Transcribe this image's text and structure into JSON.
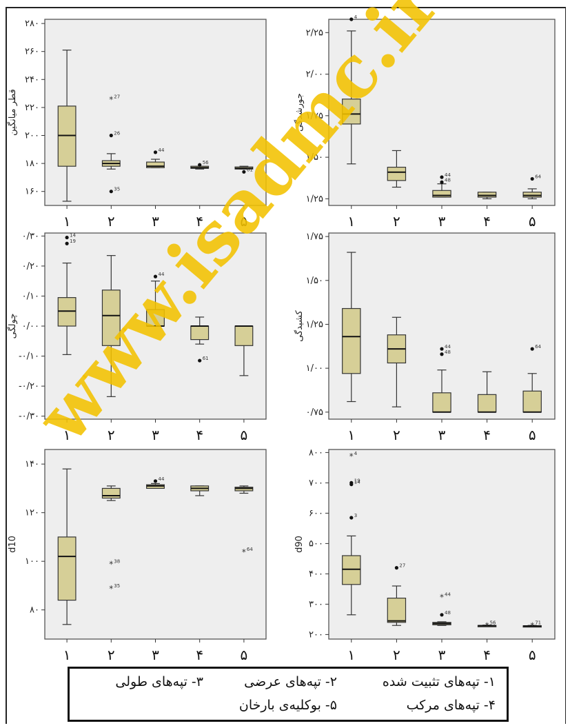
{
  "watermark": "www.isadmc.ir",
  "colors": {
    "box_fill": "#d6cf97",
    "panel_bg": "#eeeeee",
    "watermark": "#f2c200"
  },
  "chart_data": [
    {
      "type": "box",
      "ylabel": "قطر میانگین",
      "ylim": [
        150,
        283
      ],
      "yticks": [
        {
          "v": 160,
          "t": "۱۶۰"
        },
        {
          "v": 180,
          "t": "۱۸۰"
        },
        {
          "v": 200,
          "t": "۲۰۰"
        },
        {
          "v": 220,
          "t": "۲۲۰"
        },
        {
          "v": 240,
          "t": "۲۴۰"
        },
        {
          "v": 260,
          "t": "۲۶۰"
        },
        {
          "v": 280,
          "t": "۲۸۰"
        }
      ],
      "categories": [
        "۱",
        "۲",
        "۳",
        "۴",
        "۵"
      ],
      "boxes": [
        {
          "min": 153,
          "q1": 178,
          "median": 200,
          "q3": 221,
          "max": 261,
          "outliers": []
        },
        {
          "min": 176,
          "q1": 178,
          "median": 180,
          "q3": 182,
          "max": 187,
          "outliers": [
            {
              "v": 200,
              "m": "dot",
              "l": "26"
            },
            {
              "v": 160,
              "m": "dot",
              "l": "35"
            },
            {
              "v": 226,
              "m": "star",
              "l": "27"
            }
          ]
        },
        {
          "min": 177,
          "q1": 177,
          "median": 178,
          "q3": 181,
          "max": 183,
          "outliers": [
            {
              "v": 188,
              "m": "dot",
              "l": "44"
            }
          ]
        },
        {
          "min": 176,
          "q1": 176.5,
          "median": 177,
          "q3": 178,
          "max": 178,
          "outliers": [
            {
              "v": 179,
              "m": "dot",
              "l": "56"
            }
          ]
        },
        {
          "min": 176,
          "q1": 176,
          "median": 176.5,
          "q3": 177.5,
          "max": 178,
          "outliers": [
            {
              "v": 174,
              "m": "dot",
              "l": "61"
            }
          ]
        }
      ]
    },
    {
      "type": "box",
      "ylabel": "جورشدگی",
      "ylim": [
        1.21,
        2.33
      ],
      "yticks": [
        {
          "v": 1.25,
          "t": "۱/۲۵"
        },
        {
          "v": 1.5,
          "t": "۱/۵۰"
        },
        {
          "v": 1.75,
          "t": "۱/۷۵"
        },
        {
          "v": 2.0,
          "t": "۲/۰۰"
        },
        {
          "v": 2.25,
          "t": "۲/۲۵"
        }
      ],
      "categories": [
        "۱",
        "۲",
        "۳",
        "۴",
        "۵"
      ],
      "boxes": [
        {
          "min": 1.46,
          "q1": 1.7,
          "median": 1.76,
          "q3": 1.85,
          "max": 2.26,
          "outliers": [
            {
              "v": 2.33,
              "m": "dot",
              "l": "4"
            }
          ]
        },
        {
          "min": 1.32,
          "q1": 1.36,
          "median": 1.41,
          "q3": 1.44,
          "max": 1.54,
          "outliers": []
        },
        {
          "min": 1.26,
          "q1": 1.26,
          "median": 1.27,
          "q3": 1.3,
          "max": 1.34,
          "outliers": [
            {
              "v": 1.38,
              "m": "dot",
              "l": "44"
            },
            {
              "v": 1.35,
              "m": "dot",
              "l": "48"
            }
          ]
        },
        {
          "min": 1.25,
          "q1": 1.26,
          "median": 1.27,
          "q3": 1.29,
          "max": 1.29,
          "outliers": []
        },
        {
          "min": 1.25,
          "q1": 1.26,
          "median": 1.27,
          "q3": 1.29,
          "max": 1.31,
          "outliers": [
            {
              "v": 1.37,
              "m": "dot",
              "l": "64"
            }
          ]
        }
      ]
    },
    {
      "type": "box",
      "ylabel": "چولگی",
      "ylim": [
        -0.31,
        0.31
      ],
      "yticks": [
        {
          "v": -0.3,
          "t": "-۰/۳۰"
        },
        {
          "v": -0.2,
          "t": "-۰/۲۰"
        },
        {
          "v": -0.1,
          "t": "-۰/۱۰"
        },
        {
          "v": 0.0,
          "t": "۰/۰۰"
        },
        {
          "v": 0.1,
          "t": "۰/۱۰"
        },
        {
          "v": 0.2,
          "t": "۰/۲۰"
        },
        {
          "v": 0.3,
          "t": "۰/۳۰"
        }
      ],
      "categories": [
        "۱",
        "۲",
        "۳",
        "۴",
        "۵"
      ],
      "boxes": [
        {
          "min": -0.095,
          "q1": 0.0,
          "median": 0.05,
          "q3": 0.095,
          "max": 0.21,
          "outliers": [
            {
              "v": 0.295,
              "m": "dot",
              "l": "14"
            },
            {
              "v": 0.275,
              "m": "dot",
              "l": "19"
            }
          ]
        },
        {
          "min": -0.235,
          "q1": -0.065,
          "median": 0.035,
          "q3": 0.12,
          "max": 0.235,
          "outliers": []
        },
        {
          "min": 0.0,
          "q1": 0.0,
          "median": 0.0,
          "q3": 0.055,
          "max": 0.15,
          "outliers": [
            {
              "v": 0.165,
              "m": "dot",
              "l": "44"
            }
          ]
        },
        {
          "min": -0.06,
          "q1": -0.045,
          "median": 0.0,
          "q3": 0.0,
          "max": 0.03,
          "outliers": [
            {
              "v": -0.115,
              "m": "dot",
              "l": "61"
            }
          ]
        },
        {
          "min": -0.165,
          "q1": -0.065,
          "median": 0.0,
          "q3": 0.0,
          "max": 0.0,
          "outliers": []
        }
      ]
    },
    {
      "type": "box",
      "ylabel": "کشیدگی",
      "ylim": [
        0.71,
        1.77
      ],
      "yticks": [
        {
          "v": 0.75,
          "t": "۰/۷۵"
        },
        {
          "v": 1.0,
          "t": "۱/۰۰"
        },
        {
          "v": 1.25,
          "t": "۱/۲۵"
        },
        {
          "v": 1.5,
          "t": "۱/۵۰"
        },
        {
          "v": 1.75,
          "t": "۱/۷۵"
        }
      ],
      "categories": [
        "۱",
        "۲",
        "۳",
        "۴",
        "۵"
      ],
      "boxes": [
        {
          "min": 0.81,
          "q1": 0.97,
          "median": 1.18,
          "q3": 1.34,
          "max": 1.66,
          "outliers": []
        },
        {
          "min": 0.78,
          "q1": 1.03,
          "median": 1.11,
          "q3": 1.19,
          "max": 1.29,
          "outliers": []
        },
        {
          "min": 0.75,
          "q1": 0.75,
          "median": 0.75,
          "q3": 0.86,
          "max": 0.99,
          "outliers": [
            {
              "v": 1.11,
              "m": "dot",
              "l": "44"
            },
            {
              "v": 1.08,
              "m": "dot",
              "l": "48"
            }
          ]
        },
        {
          "min": 0.75,
          "q1": 0.75,
          "median": 0.75,
          "q3": 0.85,
          "max": 0.98,
          "outliers": []
        },
        {
          "min": 0.75,
          "q1": 0.75,
          "median": 0.75,
          "q3": 0.87,
          "max": 0.97,
          "outliers": [
            {
              "v": 1.11,
              "m": "dot",
              "l": "64"
            }
          ]
        }
      ]
    },
    {
      "type": "box",
      "ylabel": "d10",
      "ylim": [
        68,
        146
      ],
      "yticks": [
        {
          "v": 80,
          "t": "۸۰"
        },
        {
          "v": 100,
          "t": "۱۰۰"
        },
        {
          "v": 120,
          "t": "۱۲۰"
        },
        {
          "v": 140,
          "t": "۱۴۰"
        }
      ],
      "categories": [
        "۱",
        "۲",
        "۳",
        "۴",
        "۵"
      ],
      "boxes": [
        {
          "min": 74,
          "q1": 84,
          "median": 102,
          "q3": 110,
          "max": 138,
          "outliers": []
        },
        {
          "min": 125,
          "q1": 126,
          "median": 127,
          "q3": 130,
          "max": 131,
          "outliers": [
            {
              "v": 99,
              "m": "star",
              "l": "38"
            },
            {
              "v": 89,
              "m": "star",
              "l": "35"
            }
          ]
        },
        {
          "min": 130,
          "q1": 130,
          "median": 131,
          "q3": 131.5,
          "max": 132,
          "outliers": [
            {
              "v": 133,
              "m": "dot",
              "l": "44"
            }
          ]
        },
        {
          "min": 127,
          "q1": 129,
          "median": 130,
          "q3": 131,
          "max": 131,
          "outliers": []
        },
        {
          "min": 128,
          "q1": 129,
          "median": 130,
          "q3": 130.5,
          "max": 131,
          "outliers": [
            {
              "v": 104,
              "m": "star",
              "l": "64"
            }
          ]
        }
      ]
    },
    {
      "type": "box",
      "ylabel": "d90",
      "ylim": [
        185,
        810
      ],
      "yticks": [
        {
          "v": 200,
          "t": "۲۰۰"
        },
        {
          "v": 300,
          "t": "۳۰۰"
        },
        {
          "v": 400,
          "t": "۴۰۰"
        },
        {
          "v": 500,
          "t": "۵۰۰"
        },
        {
          "v": 600,
          "t": "۶۰۰"
        },
        {
          "v": 700,
          "t": "۷۰۰"
        },
        {
          "v": 800,
          "t": "۸۰۰"
        }
      ],
      "categories": [
        "۱",
        "۲",
        "۳",
        "۴",
        "۵"
      ],
      "boxes": [
        {
          "min": 265,
          "q1": 365,
          "median": 415,
          "q3": 460,
          "max": 525,
          "outliers": [
            {
              "v": 790,
              "m": "star",
              "l": "4"
            },
            {
              "v": 700,
              "m": "dot",
              "l": "19"
            },
            {
              "v": 695,
              "m": "dot",
              "l": "14"
            },
            {
              "v": 585,
              "m": "dot",
              "l": "3"
            }
          ]
        },
        {
          "min": 230,
          "q1": 240,
          "median": 245,
          "q3": 320,
          "max": 360,
          "outliers": [
            {
              "v": 420,
              "m": "dot",
              "l": "27"
            }
          ]
        },
        {
          "min": 230,
          "q1": 232,
          "median": 236,
          "q3": 240,
          "max": 242,
          "outliers": [
            {
              "v": 265,
              "m": "dot",
              "l": "48"
            },
            {
              "v": 325,
              "m": "star",
              "l": "44"
            }
          ]
        },
        {
          "min": 227,
          "q1": 228,
          "median": 229,
          "q3": 230,
          "max": 231,
          "outliers": [
            {
              "v": 232,
              "m": "star",
              "l": "56"
            }
          ]
        },
        {
          "min": 226,
          "q1": 227,
          "median": 228,
          "q3": 229,
          "max": 230,
          "outliers": [
            {
              "v": 232,
              "m": "star",
              "l": "71"
            }
          ]
        }
      ]
    }
  ],
  "legend": {
    "item1": "۱- تپه‌های تثبیت شده",
    "item2": "۲- تپه‌های عرضی",
    "item3": "۳- تپه‌های طولی",
    "item4": "۴- تپه‌های مرکب",
    "item5": "۵- بوکلیه‌ی بارخان"
  }
}
